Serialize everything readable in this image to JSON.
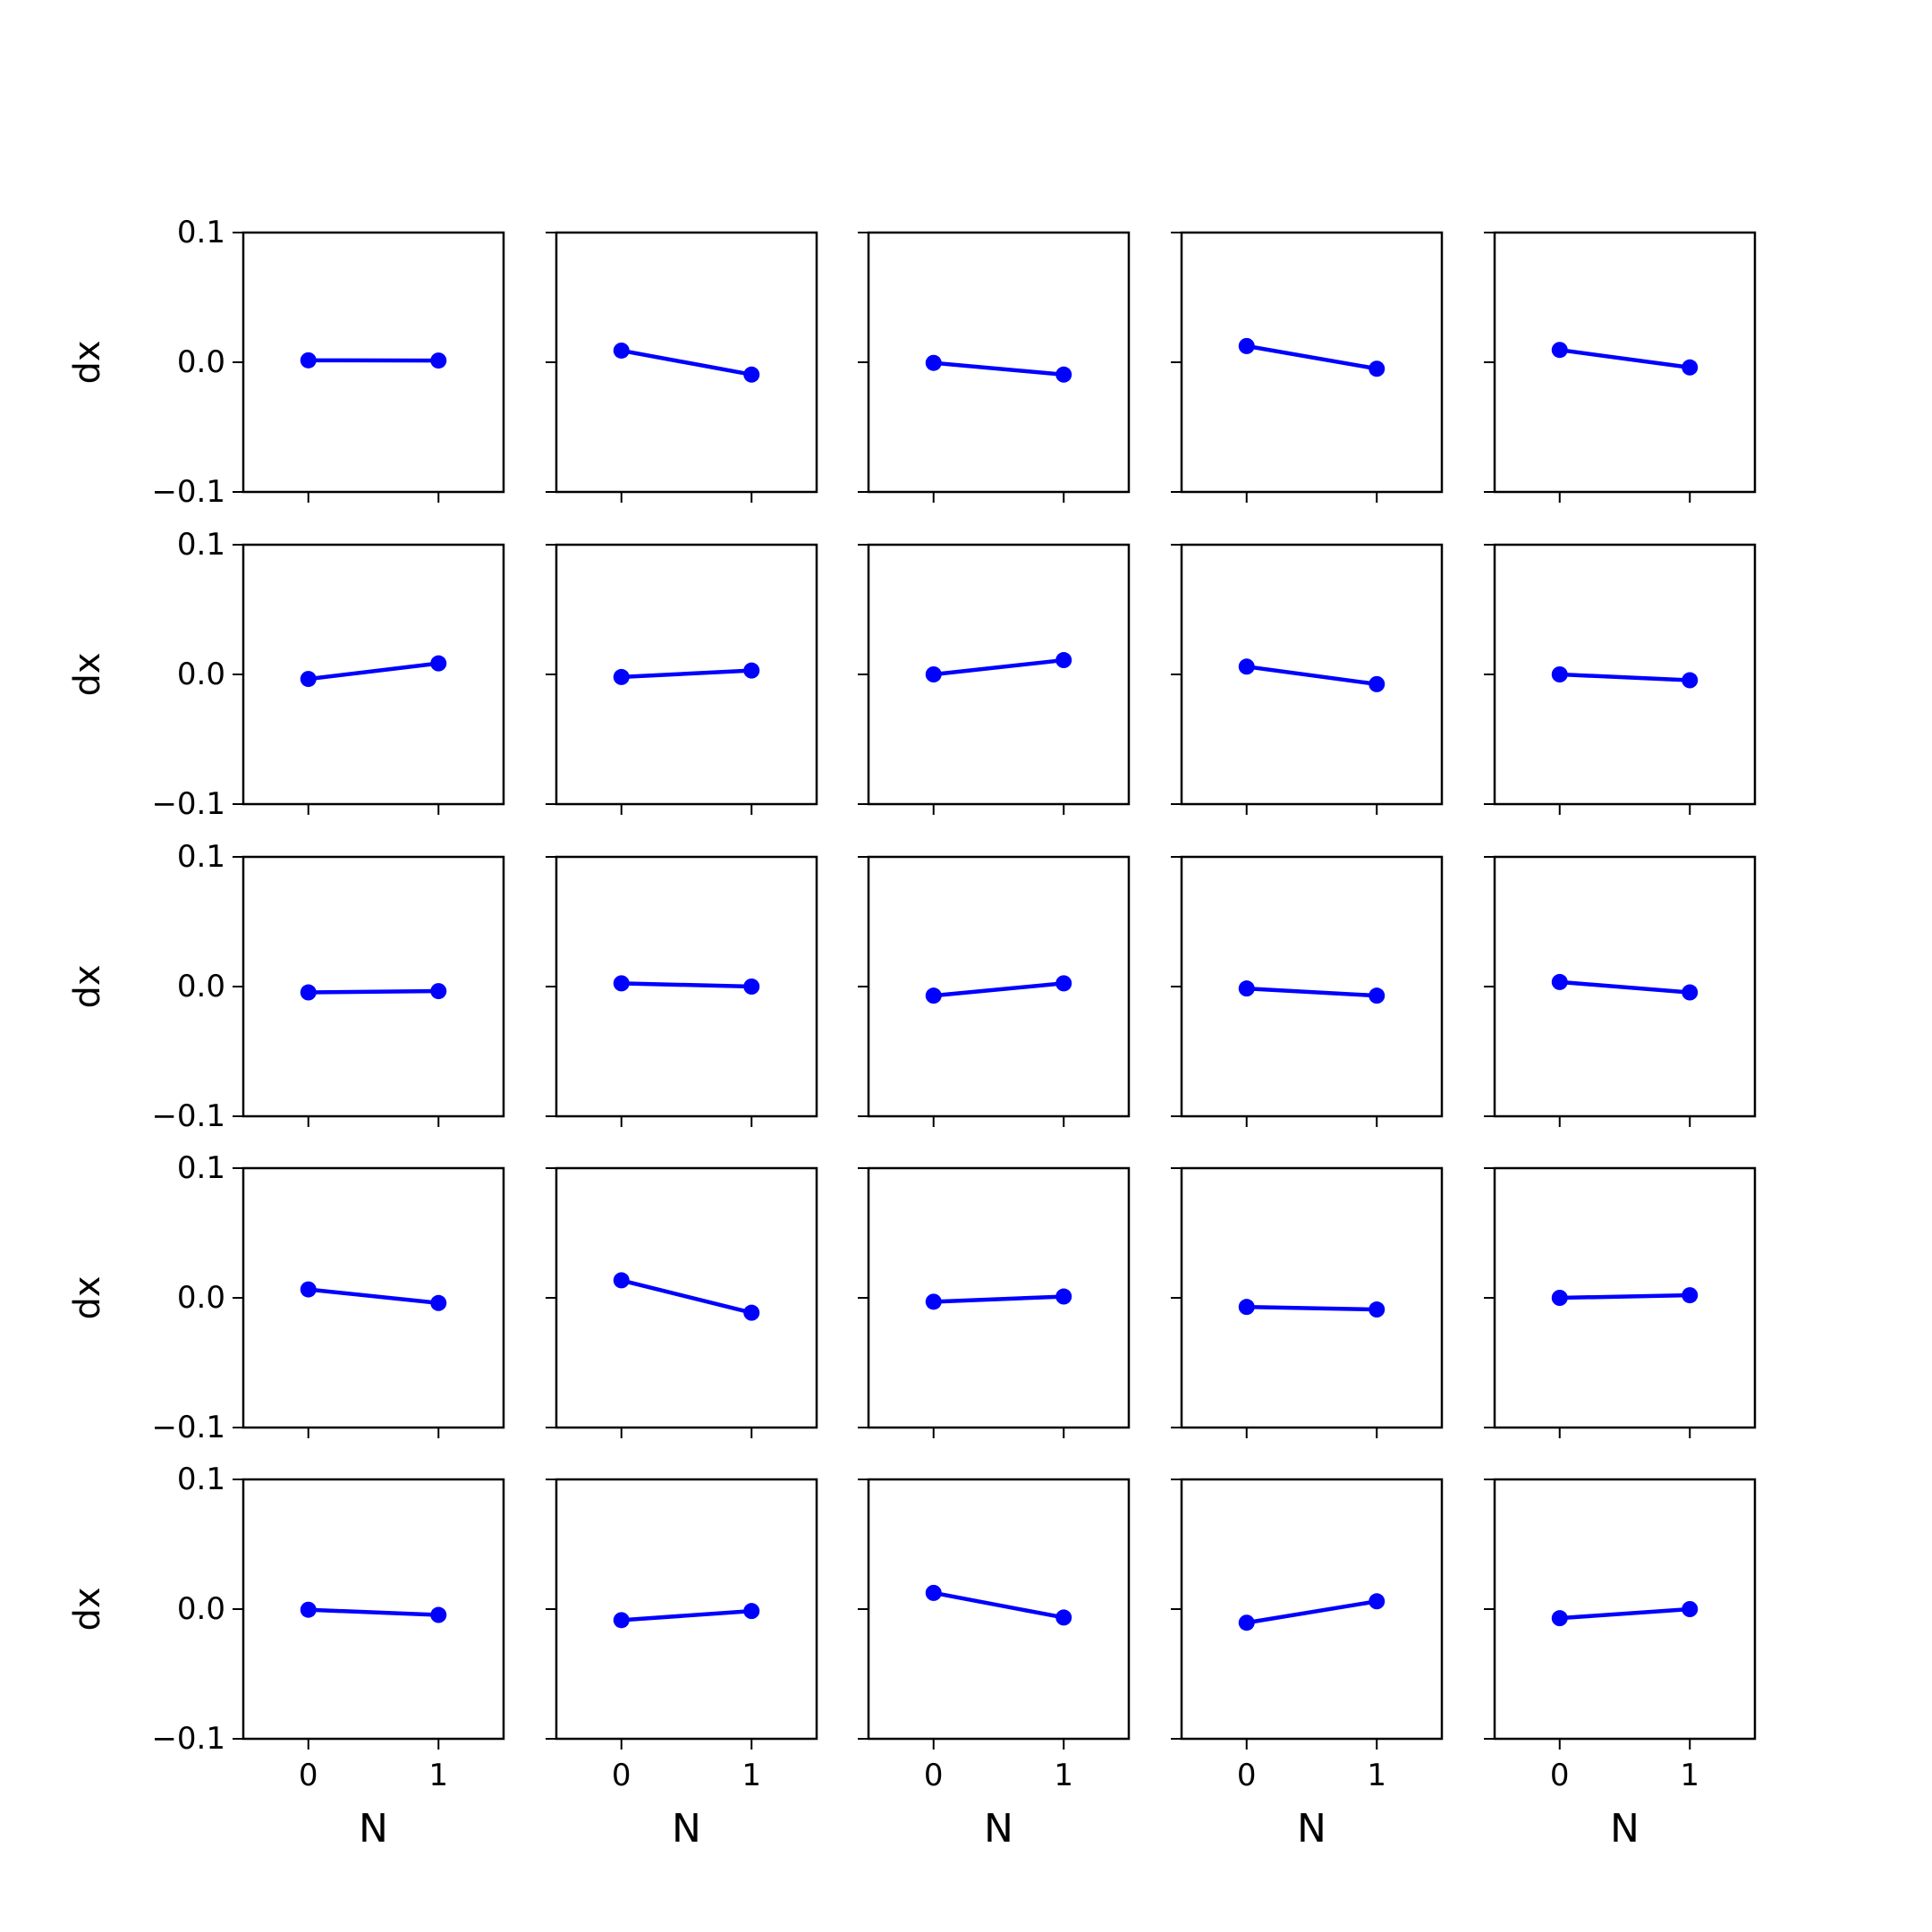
{
  "figure": {
    "rows": 5,
    "cols": 5,
    "line_color": "#0000ff",
    "axis_color": "#000000",
    "background": "#ffffff"
  },
  "shared_axes": {
    "xlabel": "N",
    "ylabel": "dx",
    "xticks": [
      0,
      1
    ],
    "xtick_labels": [
      "0",
      "1"
    ],
    "yticks": [
      -0.1,
      0.0,
      0.1
    ],
    "ytick_labels": [
      "−0.1",
      "0.0",
      "0.1"
    ],
    "xlim": [
      -0.5,
      1.5
    ],
    "ylim": [
      -0.1,
      0.1
    ]
  },
  "chart_data": [
    {
      "type": "line",
      "x": [
        0,
        1
      ],
      "values": [
        0.0015,
        0.0013
      ],
      "xlabel": "",
      "ylabel": "dx",
      "ylim": [
        -0.1,
        0.1
      ]
    },
    {
      "type": "line",
      "x": [
        0,
        1
      ],
      "values": [
        0.009,
        -0.0095
      ],
      "xlabel": "",
      "ylabel": "",
      "ylim": [
        -0.1,
        0.1
      ]
    },
    {
      "type": "line",
      "x": [
        0,
        1
      ],
      "values": [
        -0.0005,
        -0.0095
      ],
      "xlabel": "",
      "ylabel": "",
      "ylim": [
        -0.1,
        0.1
      ]
    },
    {
      "type": "line",
      "x": [
        0,
        1
      ],
      "values": [
        0.0125,
        -0.005
      ],
      "xlabel": "",
      "ylabel": "",
      "ylim": [
        -0.1,
        0.1
      ]
    },
    {
      "type": "line",
      "x": [
        0,
        1
      ],
      "values": [
        0.0095,
        -0.004
      ],
      "xlabel": "",
      "ylabel": "",
      "ylim": [
        -0.1,
        0.1
      ]
    },
    {
      "type": "line",
      "x": [
        0,
        1
      ],
      "values": [
        -0.0035,
        0.0085
      ],
      "xlabel": "",
      "ylabel": "dx",
      "ylim": [
        -0.1,
        0.1
      ]
    },
    {
      "type": "line",
      "x": [
        0,
        1
      ],
      "values": [
        -0.002,
        0.003
      ],
      "xlabel": "",
      "ylabel": "",
      "ylim": [
        -0.1,
        0.1
      ]
    },
    {
      "type": "line",
      "x": [
        0,
        1
      ],
      "values": [
        0.0,
        0.011
      ],
      "xlabel": "",
      "ylabel": "",
      "ylim": [
        -0.1,
        0.1
      ]
    },
    {
      "type": "line",
      "x": [
        0,
        1
      ],
      "values": [
        0.006,
        -0.0075
      ],
      "xlabel": "",
      "ylabel": "",
      "ylim": [
        -0.1,
        0.1
      ]
    },
    {
      "type": "line",
      "x": [
        0,
        1
      ],
      "values": [
        0.0,
        -0.0045
      ],
      "xlabel": "",
      "ylabel": "",
      "ylim": [
        -0.1,
        0.1
      ]
    },
    {
      "type": "line",
      "x": [
        0,
        1
      ],
      "values": [
        -0.0045,
        -0.0035
      ],
      "xlabel": "",
      "ylabel": "dx",
      "ylim": [
        -0.1,
        0.1
      ]
    },
    {
      "type": "line",
      "x": [
        0,
        1
      ],
      "values": [
        0.0025,
        0.0
      ],
      "xlabel": "",
      "ylabel": "",
      "ylim": [
        -0.1,
        0.1
      ]
    },
    {
      "type": "line",
      "x": [
        0,
        1
      ],
      "values": [
        -0.007,
        0.0025
      ],
      "xlabel": "",
      "ylabel": "",
      "ylim": [
        -0.1,
        0.1
      ]
    },
    {
      "type": "line",
      "x": [
        0,
        1
      ],
      "values": [
        -0.0015,
        -0.007
      ],
      "xlabel": "",
      "ylabel": "",
      "ylim": [
        -0.1,
        0.1
      ]
    },
    {
      "type": "line",
      "x": [
        0,
        1
      ],
      "values": [
        0.0035,
        -0.0045
      ],
      "xlabel": "",
      "ylabel": "",
      "ylim": [
        -0.1,
        0.1
      ]
    },
    {
      "type": "line",
      "x": [
        0,
        1
      ],
      "values": [
        0.0065,
        -0.004
      ],
      "xlabel": "",
      "ylabel": "dx",
      "ylim": [
        -0.1,
        0.1
      ]
    },
    {
      "type": "line",
      "x": [
        0,
        1
      ],
      "values": [
        0.0135,
        -0.0115
      ],
      "xlabel": "",
      "ylabel": "",
      "ylim": [
        -0.1,
        0.1
      ]
    },
    {
      "type": "line",
      "x": [
        0,
        1
      ],
      "values": [
        -0.003,
        0.001
      ],
      "xlabel": "",
      "ylabel": "",
      "ylim": [
        -0.1,
        0.1
      ]
    },
    {
      "type": "line",
      "x": [
        0,
        1
      ],
      "values": [
        -0.007,
        -0.009
      ],
      "xlabel": "",
      "ylabel": "",
      "ylim": [
        -0.1,
        0.1
      ]
    },
    {
      "type": "line",
      "x": [
        0,
        1
      ],
      "values": [
        0.0,
        0.002
      ],
      "xlabel": "",
      "ylabel": "",
      "ylim": [
        -0.1,
        0.1
      ]
    },
    {
      "type": "line",
      "x": [
        0,
        1
      ],
      "values": [
        -0.0005,
        -0.0045
      ],
      "xlabel": "N",
      "ylabel": "dx",
      "ylim": [
        -0.1,
        0.1
      ]
    },
    {
      "type": "line",
      "x": [
        0,
        1
      ],
      "values": [
        -0.0085,
        -0.0015
      ],
      "xlabel": "N",
      "ylabel": "",
      "ylim": [
        -0.1,
        0.1
      ]
    },
    {
      "type": "line",
      "x": [
        0,
        1
      ],
      "values": [
        0.0125,
        -0.0065
      ],
      "xlabel": "N",
      "ylabel": "",
      "ylim": [
        -0.1,
        0.1
      ]
    },
    {
      "type": "line",
      "x": [
        0,
        1
      ],
      "values": [
        -0.0105,
        0.006
      ],
      "xlabel": "N",
      "ylabel": "",
      "ylim": [
        -0.1,
        0.1
      ]
    },
    {
      "type": "line",
      "x": [
        0,
        1
      ],
      "values": [
        -0.007,
        0.0
      ],
      "xlabel": "N",
      "ylabel": "",
      "ylim": [
        -0.1,
        0.1
      ]
    }
  ]
}
